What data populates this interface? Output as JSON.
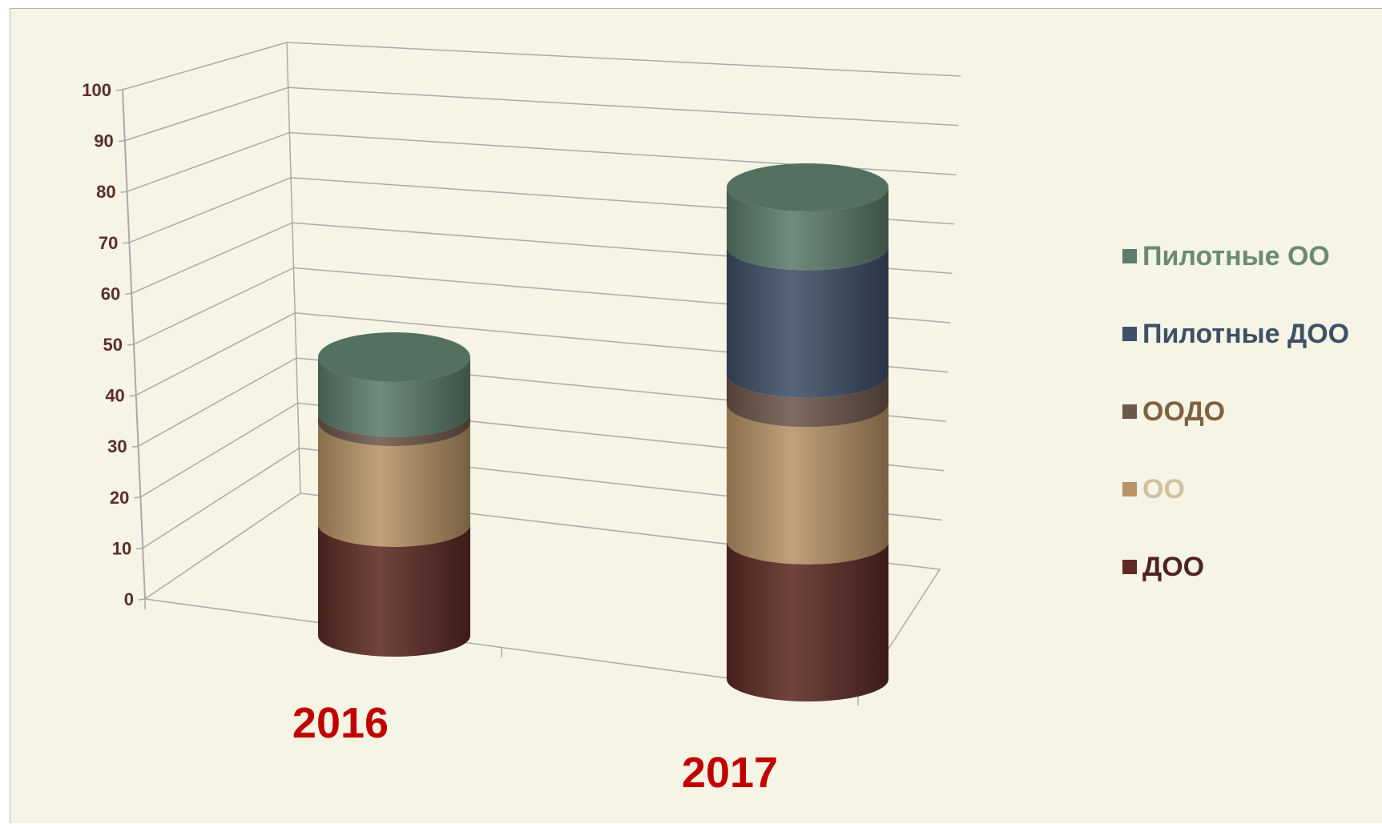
{
  "chart_data": {
    "type": "bar",
    "stacked": true,
    "style": "3d-cylinder",
    "categories": [
      "2016",
      "2017"
    ],
    "yticks": [
      "0",
      "10",
      "20",
      "30",
      "40",
      "50",
      "60",
      "70",
      "80",
      "90",
      "100"
    ],
    "ylim": [
      0,
      100
    ],
    "grid": true,
    "legend_position": "right",
    "series": [
      {
        "name": "ДОО",
        "values": [
          24,
          28
        ],
        "color": "#5e2a24",
        "text_color": "#4e2420"
      },
      {
        "name": "ОО",
        "values": [
          22,
          28
        ],
        "color": "#b89466",
        "text_color": "#d2c0a3"
      },
      {
        "name": "ООДО",
        "values": [
          2,
          6
        ],
        "color": "#6e574b",
        "text_color": "#806040"
      },
      {
        "name": "Пилотные ДОО",
        "values": [
          0,
          26
        ],
        "color": "#3f5068",
        "text_color": "#3e5068"
      },
      {
        "name": "Пилотные ОО",
        "values": [
          12,
          12
        ],
        "color": "#5c7c6c",
        "text_color": "#6a8a78"
      }
    ]
  }
}
